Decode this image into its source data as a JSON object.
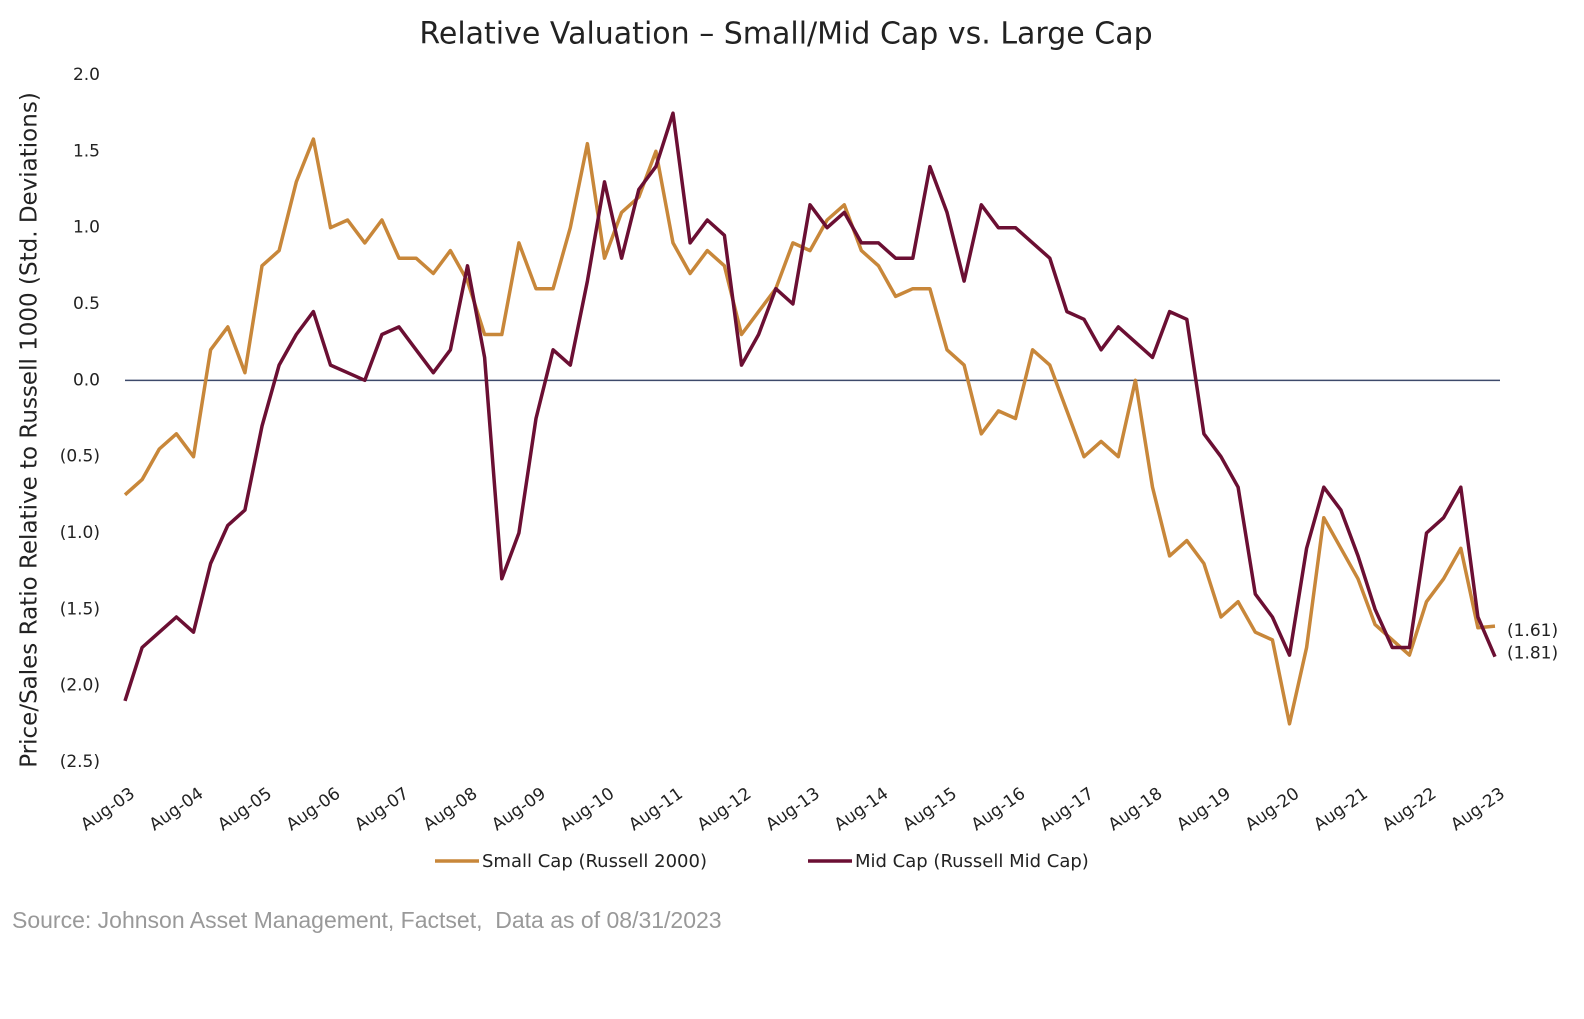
{
  "chart_data": {
    "type": "line",
    "title": "Relative Valuation – Small/Mid Cap vs. Large Cap",
    "y_label": "Price/Sales Ratio Relative to Russell 1000 (Std. Deviations)",
    "source": "Source: Johnson Asset Management, Factset,  Data as of 08/31/2023",
    "categories": [
      "Aug-03",
      null,
      null,
      null,
      "Aug-04",
      null,
      null,
      null,
      "Aug-05",
      null,
      null,
      null,
      "Aug-06",
      null,
      null,
      null,
      "Aug-07",
      null,
      null,
      null,
      "Aug-08",
      null,
      null,
      null,
      "Aug-09",
      null,
      null,
      null,
      "Aug-10",
      null,
      null,
      null,
      "Aug-11",
      null,
      null,
      null,
      "Aug-12",
      null,
      null,
      null,
      "Aug-13",
      null,
      null,
      null,
      "Aug-14",
      null,
      null,
      null,
      "Aug-15",
      null,
      null,
      null,
      "Aug-16",
      null,
      null,
      null,
      "Aug-17",
      null,
      null,
      null,
      "Aug-18",
      null,
      null,
      null,
      "Aug-19",
      null,
      null,
      null,
      "Aug-20",
      null,
      null,
      null,
      "Aug-21",
      null,
      null,
      null,
      "Aug-22",
      null,
      null,
      null,
      "Aug-23"
    ],
    "series": [
      {
        "name": "Small Cap (Russell 2000)",
        "color": "#c8873a",
        "values": [
          -0.75,
          -0.65,
          -0.45,
          -0.35,
          -0.5,
          0.2,
          0.35,
          0.05,
          0.75,
          0.85,
          1.3,
          1.58,
          1.0,
          1.05,
          0.9,
          1.05,
          0.8,
          0.8,
          0.7,
          0.85,
          0.65,
          0.3,
          0.3,
          0.9,
          0.6,
          0.6,
          1.0,
          1.55,
          0.8,
          1.1,
          1.2,
          1.5,
          0.9,
          0.7,
          0.85,
          0.75,
          0.3,
          0.45,
          0.6,
          0.9,
          0.85,
          1.05,
          1.15,
          0.85,
          0.75,
          0.55,
          0.6,
          0.6,
          0.2,
          0.1,
          -0.35,
          -0.2,
          -0.25,
          0.2,
          0.1,
          -0.2,
          -0.5,
          -0.4,
          -0.5,
          0.0,
          -0.7,
          -1.15,
          -1.05,
          -1.2,
          -1.55,
          -1.45,
          -1.65,
          -1.7,
          -2.25,
          -1.75,
          -0.9,
          -1.1,
          -1.3,
          -1.6,
          -1.7,
          -1.8,
          -1.45,
          -1.3,
          -1.1,
          -1.62,
          -1.61
        ]
      },
      {
        "name": "Mid Cap (Russell Mid Cap)",
        "color": "#6b0f33",
        "values": [
          -2.1,
          -1.75,
          -1.65,
          -1.55,
          -1.65,
          -1.2,
          -0.95,
          -0.85,
          -0.3,
          0.1,
          0.3,
          0.45,
          0.1,
          0.05,
          0.0,
          0.3,
          0.35,
          0.2,
          0.05,
          0.2,
          0.75,
          0.15,
          -1.3,
          -1.0,
          -0.25,
          0.2,
          0.1,
          0.65,
          1.3,
          0.8,
          1.25,
          1.4,
          1.75,
          0.9,
          1.05,
          0.95,
          0.1,
          0.3,
          0.6,
          0.5,
          1.15,
          1.0,
          1.1,
          0.9,
          0.9,
          0.8,
          0.8,
          1.4,
          1.1,
          0.65,
          1.15,
          1.0,
          1.0,
          0.9,
          0.8,
          0.45,
          0.4,
          0.2,
          0.35,
          0.25,
          0.15,
          0.45,
          0.4,
          -0.35,
          -0.5,
          -0.7,
          -1.4,
          -1.55,
          -1.8,
          -1.1,
          -0.7,
          -0.85,
          -1.15,
          -1.5,
          -1.75,
          -1.75,
          -1.0,
          -0.9,
          -0.7,
          -1.55,
          -1.81
        ]
      }
    ],
    "annotations": [
      "(1.61)",
      "(1.81)"
    ],
    "ylim": [
      -2.5,
      2
    ],
    "yticks": [
      {
        "value": 2,
        "label": "2.0"
      },
      1.5,
      {
        "value": 1,
        "label": "1.0"
      },
      0.5,
      {
        "value": 0,
        "label": "0.0"
      },
      {
        "value": -0.5,
        "label": "(0.5)"
      },
      {
        "value": -1,
        "label": "(1.0)"
      },
      {
        "value": -1.5,
        "label": "(1.5)"
      },
      {
        "value": -2,
        "label": "(2.0)"
      },
      {
        "value": -2.5,
        "label": "(2.5)"
      }
    ],
    "grid": false,
    "zero_line_color": "#3d4a6b"
  }
}
